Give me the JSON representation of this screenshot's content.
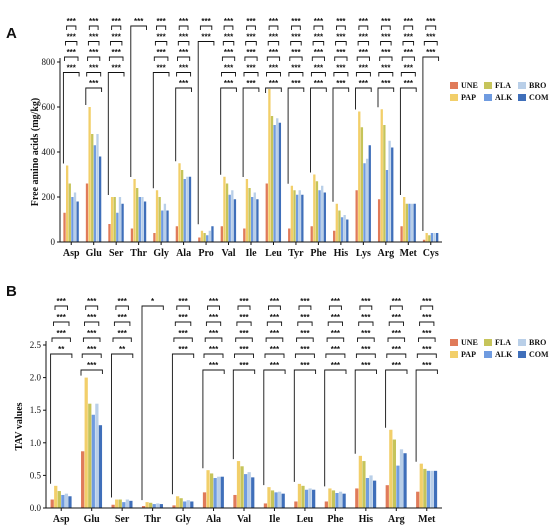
{
  "colors": {
    "UNE": "#e07b5a",
    "PAP": "#f2cf6a",
    "FLA": "#c6c45a",
    "ALK": "#6f9be0",
    "BRO": "#b9cfe8",
    "COM": "#3f6fba"
  },
  "chart_data": [
    {
      "panel": "A",
      "type": "bar",
      "ylabel": "Free amino acids (mg/kg)",
      "ylim": [
        0,
        800
      ],
      "yticks": [
        "0",
        "200",
        "400",
        "600",
        "800"
      ],
      "categories": [
        "Asp",
        "Glu",
        "Ser",
        "Thr",
        "Gly",
        "Ala",
        "Pro",
        "Val",
        "Ile",
        "Leu",
        "Tyr",
        "Phe",
        "His",
        "Lys",
        "Arg",
        "Met",
        "Cys"
      ],
      "legend": [
        "UNE",
        "PAP",
        "FLA",
        "ALK",
        "BRO",
        "COM"
      ],
      "series": [
        {
          "name": "UNE",
          "values": [
            130,
            260,
            80,
            60,
            40,
            70,
            20,
            70,
            60,
            260,
            60,
            70,
            50,
            230,
            190,
            70,
            10
          ]
        },
        {
          "name": "PAP",
          "values": [
            340,
            600,
            200,
            280,
            230,
            350,
            50,
            290,
            280,
            680,
            250,
            300,
            170,
            580,
            590,
            200,
            40
          ]
        },
        {
          "name": "FLA",
          "values": [
            260,
            480,
            200,
            240,
            200,
            320,
            40,
            260,
            240,
            560,
            230,
            270,
            140,
            510,
            520,
            170,
            30
          ]
        },
        {
          "name": "ALK",
          "values": [
            200,
            430,
            130,
            200,
            140,
            280,
            30,
            210,
            200,
            520,
            210,
            230,
            110,
            350,
            320,
            170,
            40
          ]
        },
        {
          "name": "BRO",
          "values": [
            220,
            480,
            200,
            200,
            170,
            290,
            50,
            230,
            220,
            550,
            230,
            250,
            120,
            370,
            450,
            170,
            40
          ]
        },
        {
          "name": "COM",
          "values": [
            180,
            380,
            170,
            180,
            140,
            290,
            70,
            190,
            190,
            530,
            210,
            220,
            100,
            430,
            420,
            170,
            40
          ]
        }
      ],
      "significance": [
        [
          "***",
          "***",
          "***",
          "***"
        ],
        [
          "***",
          "***",
          "***",
          "***",
          "***"
        ],
        [
          "***",
          "***",
          "***",
          "***"
        ],
        [
          "***"
        ],
        [
          "***",
          "***",
          "***",
          "***"
        ],
        [
          "***",
          "***",
          "***",
          "***",
          "***"
        ],
        [
          "***",
          "***"
        ],
        [
          "***",
          "***",
          "***",
          "***",
          "***"
        ],
        [
          "***",
          "***",
          "***",
          "***",
          "***"
        ],
        [
          "***",
          "***",
          "***",
          "***",
          "***"
        ],
        [
          "***",
          "***",
          "***",
          "***",
          "***"
        ],
        [
          "***",
          "***",
          "***",
          "***",
          "***"
        ],
        [
          "***",
          "***",
          "***",
          "***",
          "***"
        ],
        [
          "***",
          "***",
          "***",
          "***",
          "***"
        ],
        [
          "***",
          "***",
          "***",
          "***",
          "***"
        ],
        [
          "***",
          "***",
          "***",
          "***",
          "***"
        ],
        [
          "***",
          "***",
          "***"
        ]
      ]
    },
    {
      "panel": "B",
      "type": "bar",
      "ylabel": "TAV values",
      "ylim": [
        0,
        2.5
      ],
      "yticks": [
        "0.0",
        "0.5",
        "1.0",
        "1.5",
        "2.0",
        "2.5"
      ],
      "categories": [
        "Asp",
        "Glu",
        "Ser",
        "Thr",
        "Gly",
        "Ala",
        "Val",
        "Ile",
        "Leu",
        "Phe",
        "His",
        "Arg",
        "Met"
      ],
      "legend": [
        "UNE",
        "PAP",
        "FLA",
        "ALK",
        "BRO",
        "COM"
      ],
      "series": [
        {
          "name": "UNE",
          "values": [
            0.13,
            0.87,
            0.05,
            0.03,
            0.04,
            0.24,
            0.2,
            0.07,
            0.1,
            0.1,
            0.3,
            0.35,
            0.25
          ]
        },
        {
          "name": "PAP",
          "values": [
            0.34,
            2.0,
            0.13,
            0.09,
            0.18,
            0.58,
            0.72,
            0.32,
            0.37,
            0.3,
            0.8,
            1.2,
            0.68
          ]
        },
        {
          "name": "FLA",
          "values": [
            0.26,
            1.6,
            0.13,
            0.08,
            0.15,
            0.53,
            0.64,
            0.27,
            0.34,
            0.27,
            0.72,
            1.05,
            0.6
          ]
        },
        {
          "name": "ALK",
          "values": [
            0.2,
            1.43,
            0.09,
            0.06,
            0.1,
            0.46,
            0.52,
            0.24,
            0.28,
            0.23,
            0.46,
            0.65,
            0.57
          ]
        },
        {
          "name": "BRO",
          "values": [
            0.22,
            1.6,
            0.13,
            0.07,
            0.12,
            0.48,
            0.55,
            0.25,
            0.3,
            0.25,
            0.5,
            0.9,
            0.57
          ]
        },
        {
          "name": "COM",
          "values": [
            0.18,
            1.27,
            0.11,
            0.06,
            0.1,
            0.48,
            0.47,
            0.22,
            0.28,
            0.22,
            0.42,
            0.84,
            0.57
          ]
        }
      ],
      "significance": [
        [
          "***",
          "***",
          "***",
          "**"
        ],
        [
          "***",
          "***",
          "***",
          "***",
          "***"
        ],
        [
          "***",
          "***",
          "***",
          "**"
        ],
        [
          "*"
        ],
        [
          "***",
          "***",
          "***",
          "***"
        ],
        [
          "***",
          "***",
          "***",
          "***",
          "***"
        ],
        [
          "***",
          "***",
          "***",
          "***",
          "***"
        ],
        [
          "***",
          "***",
          "***",
          "***",
          "***"
        ],
        [
          "***",
          "***",
          "***",
          "***",
          "***"
        ],
        [
          "***",
          "***",
          "***",
          "***",
          "***"
        ],
        [
          "***",
          "***",
          "***",
          "***",
          "***"
        ],
        [
          "***",
          "***",
          "***",
          "***",
          "***"
        ],
        [
          "***",
          "***",
          "***",
          "***",
          "***"
        ]
      ]
    }
  ]
}
